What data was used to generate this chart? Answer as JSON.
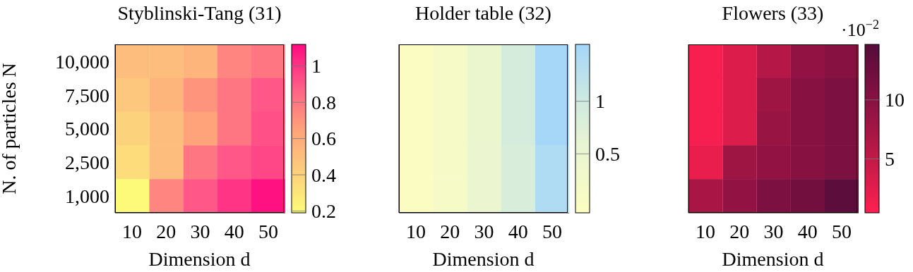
{
  "chart_data": [
    {
      "type": "heatmap",
      "title": "Styblinski-Tang (31)",
      "xlabel": "Dimension d",
      "ylabel": "N. of particles N",
      "categories": [
        "10",
        "20",
        "30",
        "40",
        "50"
      ],
      "y_categories": [
        "10,000",
        "7,500",
        "5,000",
        "2,500",
        "1,000"
      ],
      "cells": [
        [
          0.5,
          0.5,
          0.55,
          0.75,
          0.8
        ],
        [
          0.45,
          0.55,
          0.7,
          0.8,
          0.9
        ],
        [
          0.4,
          0.5,
          0.65,
          0.8,
          0.92
        ],
        [
          0.35,
          0.5,
          0.8,
          0.9,
          0.95
        ],
        [
          0.2,
          0.75,
          0.9,
          1.0,
          1.1
        ]
      ],
      "clim": [
        0.19,
        1.12
      ],
      "cticks": [
        0.2,
        0.4,
        0.6,
        0.8,
        1
      ]
    },
    {
      "type": "heatmap",
      "title": "Holder table (32)",
      "xlabel": "Dimension d",
      "categories": [
        "10",
        "20",
        "30",
        "40",
        "50"
      ],
      "y_categories": [
        "10,000",
        "7,500",
        "5,000",
        "2,500",
        "1,000"
      ],
      "tick_labels": "x",
      "cells": [
        [
          0.0,
          0.15,
          0.45,
          0.9,
          1.5
        ],
        [
          0.0,
          0.15,
          0.45,
          0.9,
          1.5
        ],
        [
          0.0,
          0.15,
          0.45,
          0.9,
          1.5
        ],
        [
          0.0,
          0.15,
          0.5,
          0.85,
          1.4
        ],
        [
          0.0,
          0.15,
          0.5,
          0.85,
          1.4
        ]
      ],
      "clim": [
        -0.06,
        1.54
      ],
      "cticks": [
        0.5,
        1
      ]
    },
    {
      "type": "heatmap",
      "title": "Flowers (33)",
      "xlabel": "Dimension d",
      "clabel": "·10$^{−2}$",
      "categories": [
        "10",
        "20",
        "30",
        "40",
        "50"
      ],
      "y_categories": [
        "10,000",
        "7,500",
        "5,000",
        "2,500",
        "1,000"
      ],
      "tick_labels": "x",
      "cells": [
        [
          1,
          3,
          6,
          9,
          10
        ],
        [
          1,
          3,
          8,
          10,
          11
        ],
        [
          1,
          3,
          8.5,
          10,
          11
        ],
        [
          2,
          8,
          9,
          10,
          11
        ],
        [
          7,
          9,
          11,
          12,
          14
        ]
      ],
      "clim": [
        0.44,
        14.7
      ],
      "cticks": [
        5,
        10
      ]
    }
  ]
}
